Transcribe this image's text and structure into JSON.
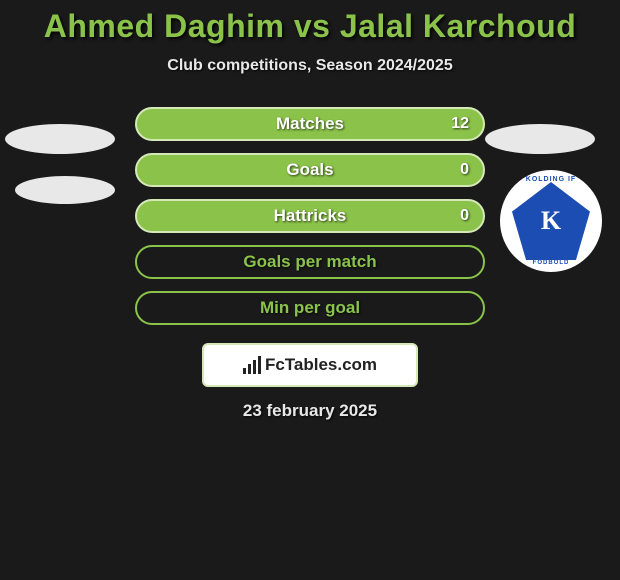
{
  "title": "Ahmed Daghim vs Jalal Karchoud",
  "subtitle": "Club competitions, Season 2024/2025",
  "colors": {
    "background": "#1a1a1a",
    "accent": "#8bc34a",
    "pill_border": "#d4e8b8",
    "text_light": "#e8e8e8",
    "badge_bg": "#ffffff",
    "badge_blue": "#1b4db3"
  },
  "stats": [
    {
      "label": "Matches",
      "right_value": "12",
      "style": "filled"
    },
    {
      "label": "Goals",
      "right_value": "0",
      "style": "filled"
    },
    {
      "label": "Hattricks",
      "right_value": "0",
      "style": "filled"
    },
    {
      "label": "Goals per match",
      "right_value": "",
      "style": "outline"
    },
    {
      "label": "Min per goal",
      "right_value": "",
      "style": "outline"
    }
  ],
  "club_badge": {
    "top_text": "KOLDING IF",
    "center_letter": "K",
    "bottom_text": "FODBOLD"
  },
  "brand": {
    "name": "FcTables.com"
  },
  "date": "23 february 2025"
}
